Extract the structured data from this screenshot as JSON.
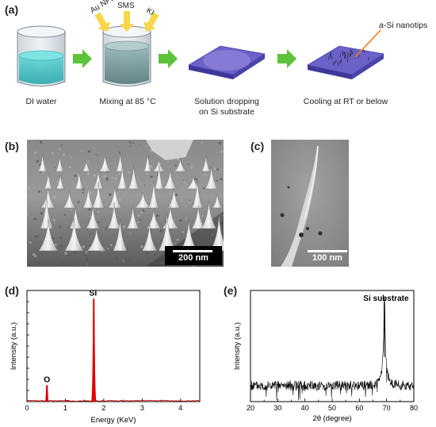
{
  "panels": {
    "a": {
      "label": "(a)",
      "reagents": [
        "Au NPs",
        "SMS",
        "KI"
      ],
      "callout": "a-Si nanotips",
      "callout_prefix": "a",
      "callout_suffix": "-Si nanotips",
      "steps": [
        {
          "caption_lines": [
            "DI water"
          ]
        },
        {
          "caption_lines": [
            "Mixing at 85 °C"
          ]
        },
        {
          "caption_lines": [
            "Solution dropping",
            "on Si substrate"
          ]
        },
        {
          "caption_lines": [
            "Cooling at RT or below"
          ]
        }
      ],
      "colors": {
        "arrow": "#5ec23a",
        "substrate": "#6a62c8",
        "water": "#3fc4c4",
        "reagent_arrow": "#f7d64a",
        "callout": "#f07a1c"
      }
    },
    "b": {
      "label": "(b)",
      "scale_bar": "200 nm"
    },
    "c": {
      "label": "(c)",
      "scale_bar": "100 nm"
    },
    "d": {
      "label": "(d)"
    },
    "e": {
      "label": "(e)"
    }
  },
  "chart_data": [
    {
      "panel": "d",
      "type": "bar",
      "xlabel": "Energy (KeV)",
      "ylabel": "Intensity (a.u.)",
      "xlim": [
        0,
        4.5
      ],
      "xticks": [
        0,
        1,
        2,
        3,
        4
      ],
      "color": "#e00000",
      "peaks": [
        {
          "x": 0.52,
          "height": 0.16,
          "width": 0.05,
          "label": "O"
        },
        {
          "x": 1.74,
          "height": 1.0,
          "width": 0.07,
          "label": "Si"
        },
        {
          "x": 0.28,
          "height": 0.01,
          "width": 0.04,
          "label": ""
        },
        {
          "x": 1.05,
          "height": 0.015,
          "width": 0.05,
          "label": ""
        }
      ],
      "annotations": [
        {
          "text": "O",
          "x": 0.52
        },
        {
          "text": "Si",
          "x": 1.74
        }
      ]
    },
    {
      "panel": "e",
      "type": "line",
      "xlabel": "2θ (degree)",
      "ylabel": "Intensity (a.u.)",
      "xlim": [
        20,
        80
      ],
      "xticks": [
        20,
        30,
        40,
        50,
        60,
        70,
        80
      ],
      "baseline": 0.16,
      "noise": 0.05,
      "color": "#000000",
      "peaks": [
        {
          "x": 69.2,
          "height": 1.0,
          "width": 0.25,
          "label": "Si substrate"
        }
      ],
      "annotations": [
        {
          "text": "Si substrate",
          "x": 69.2
        }
      ]
    }
  ]
}
